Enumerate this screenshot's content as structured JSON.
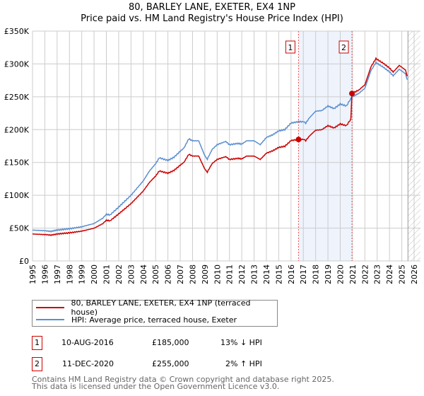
{
  "chart_data": {
    "type": "line",
    "title": [
      "80, BARLEY LANE, EXETER, EX4 1NP",
      "Price paid vs. HM Land Registry's House Price Index (HPI)"
    ],
    "xlim": [
      1995,
      2026
    ],
    "ylim": [
      0,
      350000
    ],
    "x_ticks": [
      "1995",
      "1996",
      "1997",
      "1998",
      "1999",
      "2000",
      "2001",
      "2002",
      "2003",
      "2004",
      "2005",
      "2006",
      "2007",
      "2008",
      "2009",
      "2010",
      "2011",
      "2012",
      "2013",
      "2014",
      "2015",
      "2016",
      "2017",
      "2018",
      "2019",
      "2020",
      "2021",
      "2022",
      "2023",
      "2024",
      "2025",
      "2026"
    ],
    "y_ticks": [
      {
        "v": 0,
        "label": "£0"
      },
      {
        "v": 50000,
        "label": "£50K"
      },
      {
        "v": 100000,
        "label": "£100K"
      },
      {
        "v": 150000,
        "label": "£150K"
      },
      {
        "v": 200000,
        "label": "£200K"
      },
      {
        "v": 250000,
        "label": "£250K"
      },
      {
        "v": 300000,
        "label": "£300K"
      },
      {
        "v": 350000,
        "label": "£350K"
      }
    ],
    "grid": true,
    "shaded_region": [
      2016.61,
      2020.95
    ],
    "future_hatch_from": 2025.5,
    "series": [
      {
        "name": "HPI: Average price, terraced house, Exeter",
        "color": "#5b8fd0",
        "x": [
          1995,
          1996,
          1996.5,
          1997,
          1998,
          1999,
          2000,
          2000.7,
          2001,
          2001.3,
          2002,
          2003,
          2004,
          2004.5,
          2005,
          2005.3,
          2006,
          2006.5,
          2007,
          2007.3,
          2007.7,
          2008,
          2008.5,
          2009,
          2009.2,
          2009.6,
          2010,
          2010.7,
          2011,
          2011.7,
          2012,
          2012.4,
          2013,
          2013.5,
          2014,
          2014.5,
          2015,
          2015.5,
          2016,
          2016.6,
          2017,
          2017.2,
          2017.5,
          2018,
          2018.5,
          2019,
          2019.5,
          2020,
          2020.5,
          2020.95,
          2021.5,
          2022,
          2022.5,
          2022.9,
          2023.5,
          2024,
          2024.3,
          2024.8,
          2025.3,
          2025.45
        ],
        "y": [
          47000,
          46000,
          45000,
          47000,
          49000,
          52000,
          57000,
          65000,
          71000,
          70000,
          82000,
          100000,
          122000,
          137000,
          148000,
          157000,
          153000,
          158000,
          167000,
          172000,
          186000,
          183000,
          183000,
          160000,
          155000,
          170000,
          177000,
          182000,
          177000,
          179000,
          178000,
          183000,
          183000,
          177000,
          188000,
          192000,
          198000,
          200000,
          210000,
          212000,
          212000,
          210000,
          218000,
          228000,
          229000,
          236000,
          232000,
          239000,
          236000,
          250000,
          255000,
          263000,
          290000,
          302000,
          295000,
          288000,
          282000,
          292000,
          285000,
          276000
        ]
      },
      {
        "name": "80, BARLEY LANE, EXETER, EX4 1NP (terraced house)",
        "color": "#cc0000",
        "derived_from_hpi": true,
        "ratio_before_sale2": 0.873,
        "ratio_after_sale2": 1.02
      }
    ],
    "sales": [
      {
        "id": "1",
        "x": 2016.61,
        "y": 185000
      },
      {
        "id": "2",
        "x": 2020.95,
        "y": 255000
      }
    ]
  },
  "legend": [
    {
      "label": "80, BARLEY LANE, EXETER, EX4 1NP (terraced house)",
      "color": "#cc0000"
    },
    {
      "label": "HPI: Average price, terraced house, Exeter",
      "color": "#5b8fd0"
    }
  ],
  "transactions": [
    {
      "id": "1",
      "date": "10-AUG-2016",
      "price": "£185,000",
      "hpi": "13% ↓ HPI"
    },
    {
      "id": "2",
      "date": "11-DEC-2020",
      "price": "£255,000",
      "hpi": "2% ↑ HPI"
    }
  ],
  "footer": [
    "Contains HM Land Registry data © Crown copyright and database right 2025.",
    "This data is licensed under the Open Government Licence v3.0."
  ]
}
